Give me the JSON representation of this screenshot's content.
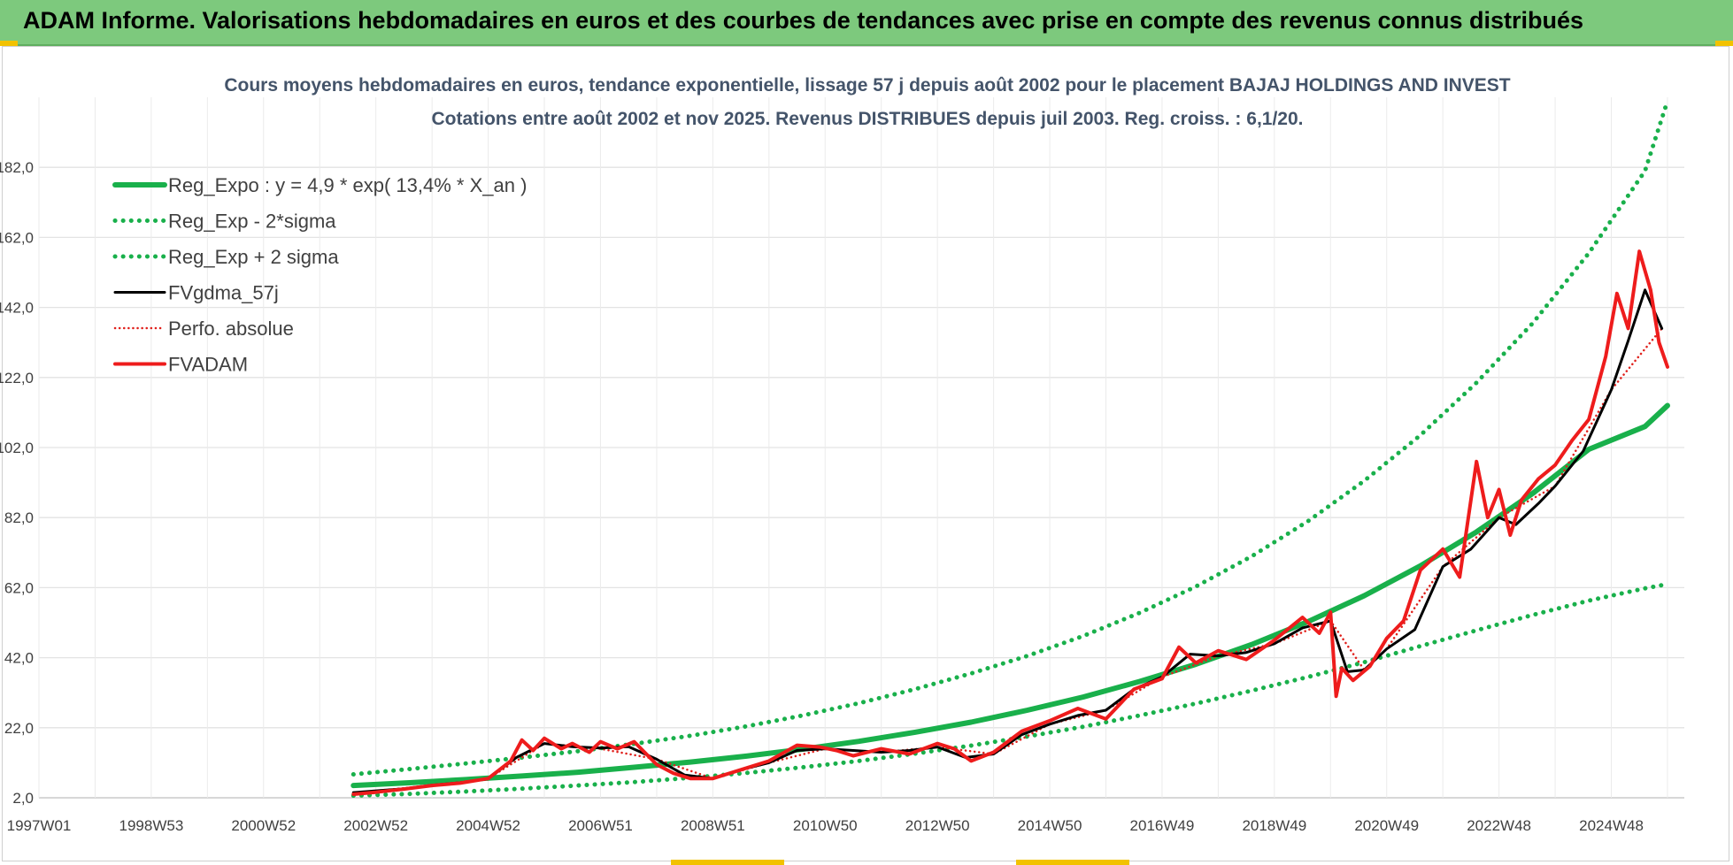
{
  "header": {
    "title": "ADAM Informe. Valorisations hebdomadaires en euros et des courbes de tendances avec prise en compte des revenus connus distribués"
  },
  "chart_data": {
    "type": "line",
    "title": "Cours moyens hebdomadaires en euros, tendance exponentielle, lissage 57 j depuis août 2002 pour le placement BAJAJ HOLDINGS AND INVEST",
    "subtitle": "Cotations entre août 2002 et nov 2025. Revenus DISTRIBUES depuis juil 2003. Reg. croiss. : 6,1/20.",
    "xlabel": "",
    "ylabel": "",
    "xlim": [
      1997.0,
      2026.3
    ],
    "ylim": [
      2.0,
      202.0
    ],
    "y_ticks": [
      "2,0",
      "22,0",
      "42,0",
      "62,0",
      "82,0",
      "102,0",
      "122,0",
      "142,0",
      "162,0",
      "182,0"
    ],
    "y_tick_values": [
      2,
      22,
      42,
      62,
      82,
      102,
      122,
      142,
      162,
      182
    ],
    "x_ticks": [
      "1997W01",
      "1998W53",
      "2000W52",
      "2002W52",
      "2004W52",
      "2006W51",
      "2008W51",
      "2010W50",
      "2012W50",
      "2014W50",
      "2016W49",
      "2018W49",
      "2020W49",
      "2022W48",
      "2024W48"
    ],
    "x_tick_values": [
      1997.0,
      1999.0,
      2001.0,
      2003.0,
      2005.0,
      2007.0,
      2009.0,
      2011.0,
      2013.0,
      2015.0,
      2017.0,
      2019.0,
      2021.0,
      2023.0,
      2025.0
    ],
    "grid": true,
    "legend_position": "top-left",
    "series": [
      {
        "name": "Reg_Expo : y = 4,9 * exp( 13,4% *  X_an )",
        "color": "#19b04b",
        "style": "solid",
        "x": [
          2002.6,
          2003.6,
          2004.6,
          2005.6,
          2006.6,
          2007.6,
          2008.6,
          2009.6,
          2010.6,
          2011.6,
          2012.6,
          2013.6,
          2014.6,
          2015.6,
          2016.6,
          2017.6,
          2018.6,
          2019.6,
          2020.6,
          2021.6,
          2022.6,
          2023.6,
          2024.6,
          2025.6,
          2026.0
        ],
        "values": [
          5.5,
          6.3,
          7.2,
          8.2,
          9.3,
          10.7,
          12.2,
          13.9,
          15.9,
          18.1,
          20.7,
          23.6,
          27.0,
          30.8,
          35.2,
          40.1,
          45.8,
          52.3,
          59.7,
          68.2,
          77.9,
          88.9,
          101.5,
          108.0,
          114.0
        ]
      },
      {
        "name": "Reg_Exp - 2*sigma",
        "color": "#19b04b",
        "style": "dotted",
        "x": [
          2002.6,
          2003.6,
          2004.6,
          2005.6,
          2006.6,
          2007.6,
          2008.6,
          2009.6,
          2010.6,
          2011.6,
          2012.6,
          2013.6,
          2014.6,
          2015.6,
          2016.6,
          2017.6,
          2018.6,
          2019.6,
          2020.6,
          2021.6,
          2022.6,
          2023.6,
          2024.6,
          2025.6,
          2026.0
        ],
        "values": [
          2.6,
          3.1,
          3.8,
          4.6,
          5.5,
          6.5,
          7.7,
          9.1,
          10.7,
          12.5,
          14.6,
          16.9,
          19.5,
          22.3,
          25.5,
          28.9,
          32.6,
          36.5,
          40.7,
          45.3,
          49.8,
          54.2,
          58.3,
          61.8,
          63.0
        ]
      },
      {
        "name": "Reg_Exp + 2 sigma",
        "color": "#19b04b",
        "style": "dotted",
        "x": [
          2002.6,
          2003.6,
          2004.6,
          2005.6,
          2006.6,
          2007.6,
          2008.6,
          2009.6,
          2010.6,
          2011.6,
          2012.6,
          2013.6,
          2014.6,
          2015.6,
          2016.6,
          2017.6,
          2018.6,
          2019.6,
          2020.6,
          2021.6,
          2022.6,
          2023.6,
          2024.6,
          2025.6,
          2026.0
        ],
        "values": [
          8.7,
          10.2,
          11.8,
          13.5,
          15.3,
          17.4,
          19.7,
          22.4,
          25.5,
          29.0,
          33.0,
          37.5,
          42.5,
          48.2,
          54.8,
          62.3,
          71.0,
          81.0,
          92.5,
          105.5,
          120.5,
          137.5,
          157.5,
          181.0,
          201.0
        ]
      },
      {
        "name": "FVgdma_57j",
        "color": "#000000",
        "style": "solid",
        "x": [
          2002.6,
          2003.0,
          2003.5,
          2004.0,
          2004.5,
          2005.0,
          2005.5,
          2006.0,
          2006.5,
          2007.0,
          2007.5,
          2008.0,
          2008.5,
          2009.0,
          2009.5,
          2010.0,
          2010.5,
          2011.0,
          2011.5,
          2012.0,
          2012.5,
          2013.0,
          2013.5,
          2014.0,
          2014.5,
          2015.0,
          2015.5,
          2016.0,
          2016.5,
          2017.0,
          2017.5,
          2018.0,
          2018.5,
          2019.0,
          2019.5,
          2020.0,
          2020.3,
          2020.6,
          2021.0,
          2021.5,
          2022.0,
          2022.5,
          2023.0,
          2023.3,
          2023.7,
          2024.0,
          2024.5,
          2025.0,
          2025.3,
          2025.6,
          2025.9
        ],
        "values": [
          3.5,
          4.0,
          4.6,
          5.6,
          6.3,
          7.4,
          13.5,
          17.5,
          16.6,
          16.2,
          16.6,
          13.0,
          8.5,
          7.5,
          10.0,
          12.0,
          15.5,
          16.0,
          15.5,
          15.0,
          15.5,
          16.5,
          13.5,
          14.5,
          20.0,
          23.0,
          25.5,
          27.0,
          33.0,
          36.5,
          43.0,
          42.5,
          43.5,
          46.0,
          50.5,
          52.5,
          38.0,
          38.5,
          44.5,
          50.0,
          68.0,
          73.0,
          82.0,
          80.0,
          86.0,
          91.0,
          101.0,
          118.5,
          132.5,
          147.0,
          136.0
        ]
      },
      {
        "name": "Perfo. absolue",
        "color": "#e0201b",
        "style": "dotted",
        "x": [
          2002.6,
          2003.0,
          2004.0,
          2005.0,
          2006.0,
          2007.0,
          2008.0,
          2009.0,
          2010.0,
          2011.0,
          2012.0,
          2013.0,
          2014.0,
          2015.0,
          2016.0,
          2017.0,
          2018.0,
          2019.0,
          2020.0,
          2020.6,
          2021.0,
          2022.0,
          2023.0,
          2024.0,
          2025.0,
          2025.9
        ],
        "values": [
          3.3,
          4.0,
          5.5,
          7.5,
          17.5,
          16.0,
          13.0,
          7.5,
          12.0,
          16.0,
          15.0,
          16.5,
          14.5,
          23.0,
          27.0,
          36.5,
          42.5,
          46.0,
          52.5,
          38.5,
          44.5,
          68.0,
          82.0,
          91.0,
          118.5,
          136.0
        ]
      },
      {
        "name": "FVADAM",
        "color": "#ee1c1c",
        "style": "solid",
        "x": [
          2002.6,
          2003.0,
          2003.5,
          2004.0,
          2004.5,
          2005.0,
          2005.4,
          2005.6,
          2005.8,
          2006.0,
          2006.3,
          2006.5,
          2006.8,
          2007.0,
          2007.3,
          2007.6,
          2008.0,
          2008.3,
          2008.6,
          2009.0,
          2009.5,
          2010.0,
          2010.5,
          2010.9,
          2011.2,
          2011.5,
          2012.0,
          2012.5,
          2013.0,
          2013.3,
          2013.6,
          2014.0,
          2014.5,
          2015.0,
          2015.5,
          2016.0,
          2016.5,
          2017.0,
          2017.3,
          2017.6,
          2018.0,
          2018.5,
          2019.0,
          2019.5,
          2019.8,
          2020.0,
          2020.1,
          2020.2,
          2020.4,
          2020.7,
          2021.0,
          2021.3,
          2021.6,
          2022.0,
          2022.3,
          2022.6,
          2022.8,
          2023.0,
          2023.2,
          2023.4,
          2023.7,
          2024.0,
          2024.3,
          2024.6,
          2024.9,
          2025.1,
          2025.3,
          2025.5,
          2025.7,
          2025.85,
          2026.0
        ],
        "values": [
          3.0,
          3.6,
          4.5,
          5.5,
          6.2,
          7.5,
          12.5,
          18.5,
          15.5,
          19.0,
          16.0,
          17.5,
          15.0,
          18.0,
          16.0,
          18.0,
          11.5,
          9.0,
          7.5,
          7.5,
          10.0,
          12.5,
          17.0,
          16.5,
          15.5,
          14.0,
          16.0,
          14.5,
          17.5,
          16.0,
          12.5,
          15.0,
          21.0,
          24.0,
          27.5,
          24.5,
          33.0,
          36.0,
          45.0,
          40.5,
          44.0,
          41.5,
          47.0,
          53.5,
          49.0,
          55.0,
          31.0,
          39.0,
          35.5,
          39.5,
          47.5,
          52.5,
          67.0,
          73.0,
          65.0,
          98.0,
          82.0,
          90.0,
          77.0,
          87.0,
          93.0,
          97.0,
          104.0,
          110.0,
          128.0,
          146.0,
          136.0,
          158.0,
          147.0,
          132.0,
          125.0
        ]
      }
    ]
  }
}
